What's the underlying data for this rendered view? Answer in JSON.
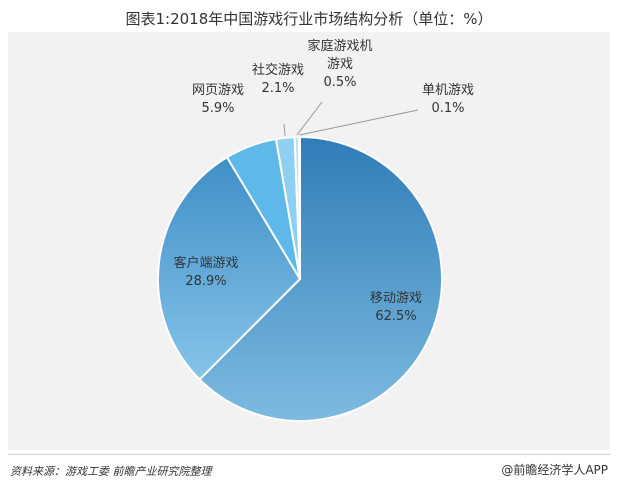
{
  "chart_data": {
    "type": "pie",
    "title": "图表1:2018年中国游戏行业市场结构分析（单位：%）",
    "slices": [
      {
        "label": "移动游戏",
        "value": "62.5%",
        "pct": 62.5,
        "color": "#4a94c9"
      },
      {
        "label": "客户端游戏",
        "value": "28.9%",
        "pct": 28.9,
        "color": "#5aa6d6"
      },
      {
        "label": "网页游戏",
        "value": "5.9%",
        "pct": 5.9,
        "color": "#5fb8ea"
      },
      {
        "label": "社交游戏",
        "value": "2.1%",
        "pct": 2.1,
        "color": "#8ed0f2"
      },
      {
        "label": "家庭游戏机游戏",
        "label_lines": [
          "家庭游戏机",
          "游戏"
        ],
        "value": "0.5%",
        "pct": 0.5,
        "color": "#b8e2f7"
      },
      {
        "label": "单机游戏",
        "value": "0.1%",
        "pct": 0.1,
        "color": "#d6eefa"
      }
    ]
  },
  "footer": {
    "source": "资料来源：游戏工委  前瞻产业研究院整理",
    "brand": "@前瞻经济学人APP"
  }
}
